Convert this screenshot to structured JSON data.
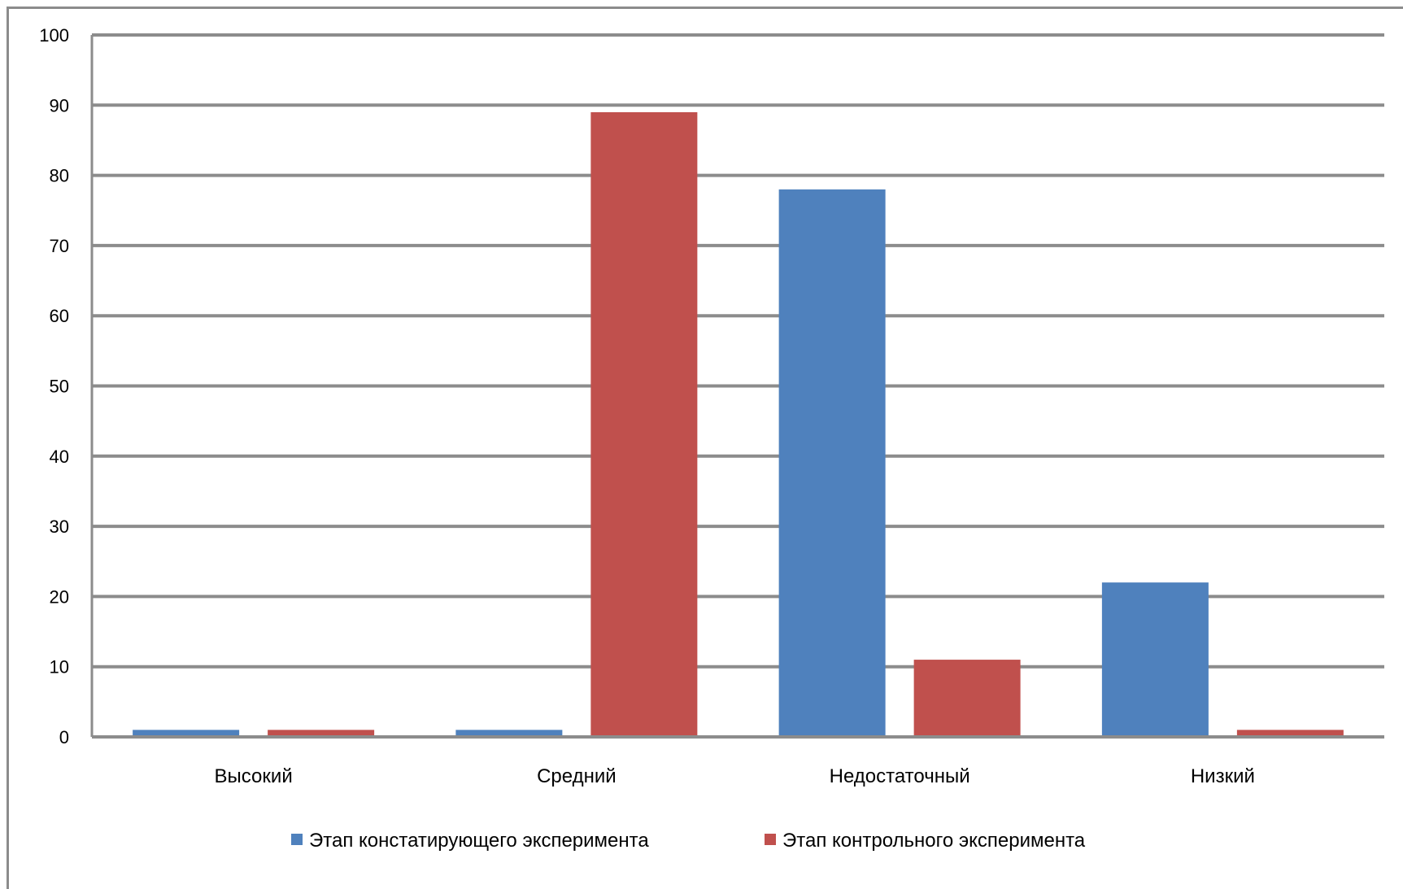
{
  "chart_data": {
    "type": "bar",
    "categories": [
      "Высокий",
      "Средний",
      "Недостаточный",
      "Низкий"
    ],
    "series": [
      {
        "name": "Этап констатирующего эксперимента",
        "color": "#4f81bd",
        "values": [
          1,
          1,
          78,
          22
        ]
      },
      {
        "name": "Этап контрольного эксперимента",
        "color": "#c0504d",
        "values": [
          1,
          89,
          11,
          1
        ]
      }
    ],
    "ylim": [
      0,
      100
    ],
    "yticks": [
      "0",
      "10",
      "20",
      "30",
      "40",
      "50",
      "60",
      "70",
      "80",
      "90",
      "100"
    ],
    "grid": true,
    "legend_position": "bottom"
  }
}
